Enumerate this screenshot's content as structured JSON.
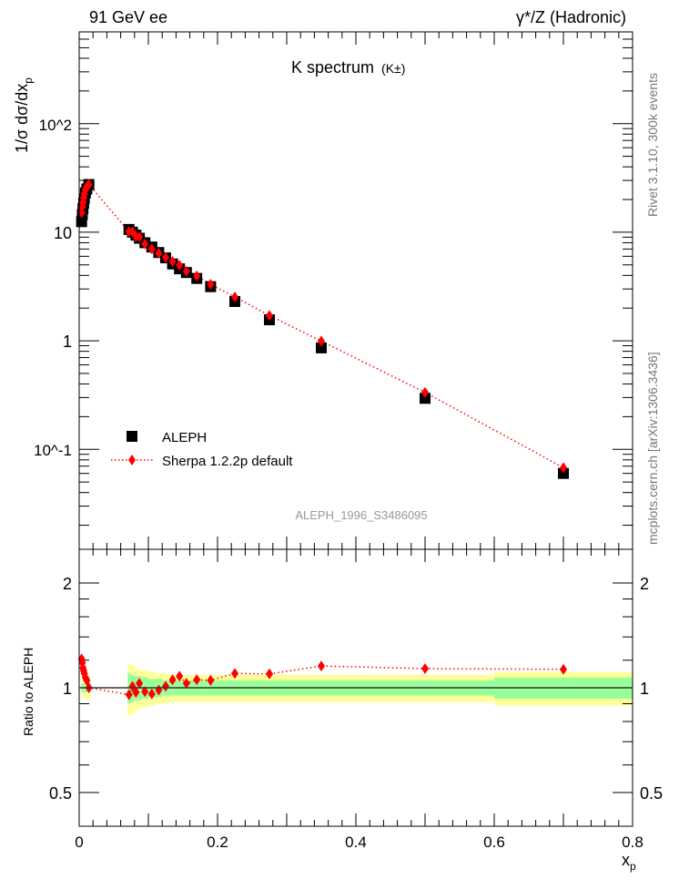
{
  "header": {
    "left": "91 GeV ee",
    "right": "γ*/Z (Hadronic)"
  },
  "side": {
    "rivet": "Rivet 3.1.10,  300k events",
    "mcplots": "mcplots.cern.ch [arXiv:1306.3436]"
  },
  "chart_data": {
    "type": "scatter",
    "title": "K spectrum",
    "title_sub": "(K±)",
    "ylabel": "1/σ dσ/dx",
    "ylabel_sub": "p",
    "xlabel": "x",
    "xlabel_sub": "p",
    "analysis": "ALEPH_1996_S3486095",
    "xlim": [
      0,
      0.8
    ],
    "ylim": [
      0.012,
      700
    ],
    "yscale": "log",
    "x_ticks": [
      "0",
      "0.2",
      "0.4",
      "0.6",
      "0.8"
    ],
    "y_ticks": [
      "10^-1",
      "1",
      "10",
      "10^2"
    ],
    "legend": {
      "placement": "lower-left",
      "entries": [
        "ALEPH",
        "Sherpa 1.2.2p default"
      ]
    },
    "ratio": {
      "ylabel": "Ratio to ALEPH",
      "ylim": [
        0.4,
        2.5
      ],
      "y_ticks": [
        "0.5",
        "1",
        "2"
      ]
    },
    "series": [
      {
        "name": "ALEPH",
        "color": "#000000",
        "points": [
          {
            "x": 0.0035,
            "lo": 0.003,
            "hi": 0.004,
            "y": 12.5,
            "stat": 0.03,
            "tot": 0.06
          },
          {
            "x": 0.0045,
            "lo": 0.004,
            "hi": 0.005,
            "y": 14.5,
            "stat": 0.03,
            "tot": 0.06
          },
          {
            "x": 0.0055,
            "lo": 0.005,
            "hi": 0.006,
            "y": 16.5,
            "stat": 0.03,
            "tot": 0.06
          },
          {
            "x": 0.0065,
            "lo": 0.006,
            "hi": 0.007,
            "y": 18.5,
            "stat": 0.03,
            "tot": 0.06
          },
          {
            "x": 0.0075,
            "lo": 0.007,
            "hi": 0.008,
            "y": 20.5,
            "stat": 0.03,
            "tot": 0.06
          },
          {
            "x": 0.009,
            "lo": 0.008,
            "hi": 0.01,
            "y": 23,
            "stat": 0.03,
            "tot": 0.07
          },
          {
            "x": 0.011,
            "lo": 0.01,
            "hi": 0.012,
            "y": 25,
            "stat": 0.03,
            "tot": 0.08
          },
          {
            "x": 0.014,
            "lo": 0.012,
            "hi": 0.016,
            "y": 27.5,
            "stat": 0.03,
            "tot": 0.08
          },
          {
            "x": 0.072,
            "lo": 0.07,
            "hi": 0.075,
            "y": 10.6,
            "stat": 0.1,
            "tot": 0.17
          },
          {
            "x": 0.077,
            "lo": 0.075,
            "hi": 0.08,
            "y": 10.0,
            "stat": 0.09,
            "tot": 0.16
          },
          {
            "x": 0.082,
            "lo": 0.08,
            "hi": 0.085,
            "y": 9.4,
            "stat": 0.08,
            "tot": 0.14
          },
          {
            "x": 0.087,
            "lo": 0.085,
            "hi": 0.09,
            "y": 8.8,
            "stat": 0.08,
            "tot": 0.13
          },
          {
            "x": 0.095,
            "lo": 0.09,
            "hi": 0.1,
            "y": 8.0,
            "stat": 0.07,
            "tot": 0.12
          },
          {
            "x": 0.105,
            "lo": 0.1,
            "hi": 0.11,
            "y": 7.3,
            "stat": 0.06,
            "tot": 0.11
          },
          {
            "x": 0.115,
            "lo": 0.11,
            "hi": 0.12,
            "y": 6.5,
            "stat": 0.06,
            "tot": 0.1
          },
          {
            "x": 0.125,
            "lo": 0.12,
            "hi": 0.13,
            "y": 5.8,
            "stat": 0.05,
            "tot": 0.1
          },
          {
            "x": 0.135,
            "lo": 0.13,
            "hi": 0.14,
            "y": 5.1,
            "stat": 0.05,
            "tot": 0.09
          },
          {
            "x": 0.145,
            "lo": 0.14,
            "hi": 0.15,
            "y": 4.6,
            "stat": 0.05,
            "tot": 0.09
          },
          {
            "x": 0.155,
            "lo": 0.15,
            "hi": 0.16,
            "y": 4.25,
            "stat": 0.05,
            "tot": 0.09
          },
          {
            "x": 0.17,
            "lo": 0.16,
            "hi": 0.18,
            "y": 3.75,
            "stat": 0.05,
            "tot": 0.09
          },
          {
            "x": 0.19,
            "lo": 0.18,
            "hi": 0.2,
            "y": 3.15,
            "stat": 0.05,
            "tot": 0.09
          },
          {
            "x": 0.225,
            "lo": 0.2,
            "hi": 0.25,
            "y": 2.3,
            "stat": 0.05,
            "tot": 0.09
          },
          {
            "x": 0.275,
            "lo": 0.25,
            "hi": 0.3,
            "y": 1.56,
            "stat": 0.05,
            "tot": 0.09
          },
          {
            "x": 0.35,
            "lo": 0.3,
            "hi": 0.4,
            "y": 0.86,
            "stat": 0.05,
            "tot": 0.09
          },
          {
            "x": 0.5,
            "lo": 0.4,
            "hi": 0.6,
            "y": 0.295,
            "stat": 0.05,
            "tot": 0.09
          },
          {
            "x": 0.7,
            "lo": 0.6,
            "hi": 0.8,
            "y": 0.06,
            "stat": 0.07,
            "tot": 0.11
          }
        ]
      },
      {
        "name": "Sherpa 1.2.2p default",
        "color": "#ff0000",
        "ratio": [
          1.21,
          1.18,
          1.14,
          1.12,
          1.1,
          1.07,
          1.05,
          1.0,
          0.955,
          1.01,
          0.97,
          1.03,
          0.975,
          0.96,
          0.985,
          1.01,
          1.055,
          1.08,
          1.03,
          1.055,
          1.05,
          1.1,
          1.096,
          1.155,
          1.135,
          1.13
        ]
      }
    ]
  }
}
